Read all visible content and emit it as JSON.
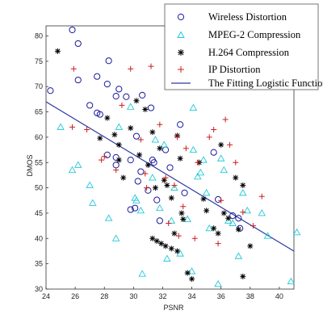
{
  "chart_data": {
    "type": "scatter",
    "xlabel": "PSNR",
    "ylabel": "DMOS",
    "xlim": [
      24,
      41
    ],
    "ylim": [
      30,
      82
    ],
    "xticks": [
      24,
      26,
      28,
      30,
      32,
      34,
      36,
      38,
      40
    ],
    "yticks": [
      30,
      35,
      40,
      45,
      50,
      55,
      60,
      65,
      70,
      75,
      80
    ],
    "legend_position": "top-right",
    "series": [
      {
        "name": "Wireless Distortion",
        "marker": "circle",
        "color": "#1a1a9e",
        "points": [
          [
            24.3,
            69.2
          ],
          [
            25.8,
            81.2
          ],
          [
            26.2,
            78.5
          ],
          [
            26.2,
            71.3
          ],
          [
            27.0,
            66.3
          ],
          [
            27.5,
            64.8
          ],
          [
            27.7,
            64.5
          ],
          [
            27.5,
            72.0
          ],
          [
            28.2,
            70.5
          ],
          [
            28.3,
            75.1
          ],
          [
            28.8,
            68.1
          ],
          [
            28.8,
            56.0
          ],
          [
            28.8,
            54.5
          ],
          [
            29.0,
            69.5
          ],
          [
            29.5,
            68.0
          ],
          [
            29.8,
            55.5
          ],
          [
            29.8,
            45.7
          ],
          [
            30.1,
            46.0
          ],
          [
            30.2,
            60.2
          ],
          [
            30.3,
            51.3
          ],
          [
            30.5,
            53.2
          ],
          [
            30.6,
            68.3
          ],
          [
            31.2,
            65.8
          ],
          [
            31.3,
            55.5
          ],
          [
            31.4,
            55.0
          ],
          [
            31.6,
            47.6
          ],
          [
            31.8,
            43.5
          ],
          [
            32.2,
            57.5
          ],
          [
            32.5,
            54.0
          ],
          [
            33.1,
            70.2
          ],
          [
            33.2,
            62.5
          ],
          [
            35.8,
            47.7
          ],
          [
            35.5,
            57.0
          ],
          [
            36.8,
            44.5
          ],
          [
            37.2,
            44.0
          ],
          [
            37.3,
            42.0
          ],
          [
            28.2,
            56.5
          ],
          [
            31.0,
            49.5
          ],
          [
            33.5,
            49.0
          ]
        ]
      },
      {
        "name": "MPEG-2 Compression",
        "marker": "triangle",
        "color": "#22c9d6",
        "points": [
          [
            25.0,
            62.0
          ],
          [
            25.8,
            53.5
          ],
          [
            26.2,
            54.5
          ],
          [
            27.0,
            50.5
          ],
          [
            27.2,
            47.0
          ],
          [
            28.3,
            44.0
          ],
          [
            28.8,
            40.0
          ],
          [
            29.0,
            62.0
          ],
          [
            29.8,
            66.0
          ],
          [
            30.1,
            48.0
          ],
          [
            30.2,
            47.5
          ],
          [
            30.5,
            45.5
          ],
          [
            30.6,
            33.0
          ],
          [
            31.3,
            52.0
          ],
          [
            31.5,
            59.5
          ],
          [
            31.8,
            46.0
          ],
          [
            32.1,
            58.5
          ],
          [
            32.3,
            36.0
          ],
          [
            32.6,
            43.5
          ],
          [
            32.8,
            50.0
          ],
          [
            33.2,
            37.0
          ],
          [
            33.7,
            43.8
          ],
          [
            34.0,
            33.5
          ],
          [
            34.1,
            57.5
          ],
          [
            34.1,
            65.8
          ],
          [
            34.4,
            52.2
          ],
          [
            34.6,
            53.0
          ],
          [
            34.8,
            55.5
          ],
          [
            35.0,
            49.0
          ],
          [
            35.2,
            42.0
          ],
          [
            35.8,
            31.0
          ],
          [
            36.0,
            55.8
          ],
          [
            36.2,
            53.5
          ],
          [
            36.5,
            43.5
          ],
          [
            36.8,
            43.0
          ],
          [
            37.2,
            36.5
          ],
          [
            37.5,
            49.0
          ],
          [
            37.8,
            45.5
          ],
          [
            38.8,
            45.0
          ],
          [
            39.2,
            40.5
          ],
          [
            40.8,
            31.5
          ],
          [
            41.2,
            41.2
          ]
        ]
      },
      {
        "name": "H.264 Compression",
        "marker": "star",
        "color": "#000000",
        "points": [
          [
            24.8,
            77.0
          ],
          [
            27.7,
            59.8
          ],
          [
            28.2,
            63.8
          ],
          [
            28.7,
            60.5
          ],
          [
            29.0,
            58.5
          ],
          [
            29.3,
            52.0
          ],
          [
            29.8,
            61.8
          ],
          [
            30.2,
            67.2
          ],
          [
            30.8,
            65.5
          ],
          [
            31.3,
            61.0
          ],
          [
            31.8,
            57.8
          ],
          [
            32.1,
            51.5
          ],
          [
            32.3,
            50.5
          ],
          [
            32.6,
            48.0
          ],
          [
            32.8,
            41.0
          ],
          [
            33.0,
            60.3
          ],
          [
            33.2,
            55.8
          ],
          [
            33.3,
            45.0
          ],
          [
            33.4,
            43.8
          ],
          [
            31.3,
            40.0
          ],
          [
            31.6,
            39.5
          ],
          [
            31.9,
            39.0
          ],
          [
            32.2,
            38.5
          ],
          [
            32.6,
            38.0
          ],
          [
            33.0,
            37.5
          ],
          [
            33.7,
            33.2
          ],
          [
            34.0,
            32.0
          ],
          [
            34.5,
            55.0
          ],
          [
            34.8,
            47.8
          ],
          [
            35.0,
            45.5
          ],
          [
            35.5,
            42.0
          ],
          [
            35.8,
            41.0
          ],
          [
            36.0,
            58.5
          ],
          [
            36.2,
            45.0
          ],
          [
            36.5,
            44.0
          ],
          [
            37.0,
            52.0
          ],
          [
            37.5,
            50.5
          ],
          [
            37.2,
            41.8
          ],
          [
            37.5,
            32.5
          ],
          [
            38.0,
            38.5
          ],
          [
            29.0,
            55.5
          ],
          [
            30.4,
            56.5
          ],
          [
            31.0,
            54.5
          ],
          [
            31.5,
            50.0
          ]
        ]
      },
      {
        "name": "IP Distortion",
        "marker": "plus",
        "color": "#cc1f1f",
        "points": [
          [
            25.8,
            62.0
          ],
          [
            25.9,
            73.5
          ],
          [
            26.8,
            61.5
          ],
          [
            27.8,
            55.5
          ],
          [
            28.0,
            56.2
          ],
          [
            28.8,
            53.5
          ],
          [
            29.2,
            66.3
          ],
          [
            29.8,
            73.5
          ],
          [
            30.5,
            59.5
          ],
          [
            30.8,
            52.8
          ],
          [
            31.2,
            74.0
          ],
          [
            31.8,
            62.5
          ],
          [
            32.2,
            52.0
          ],
          [
            32.4,
            43.0
          ],
          [
            32.8,
            50.5
          ],
          [
            33.0,
            60.0
          ],
          [
            33.4,
            46.3
          ],
          [
            33.6,
            57.8
          ],
          [
            34.2,
            40.0
          ],
          [
            34.4,
            55.0
          ],
          [
            35.2,
            60.0
          ],
          [
            35.5,
            61.5
          ],
          [
            35.8,
            39.0
          ],
          [
            36.0,
            47.5
          ],
          [
            36.3,
            63.5
          ],
          [
            36.6,
            58.5
          ],
          [
            37.0,
            55.0
          ],
          [
            37.5,
            45.2
          ],
          [
            38.2,
            42.5
          ],
          [
            38.8,
            48.3
          ],
          [
            30.9,
            50.0
          ],
          [
            33.1,
            40.5
          ]
        ]
      }
    ],
    "fit_line": {
      "name": "The Fitting Logistic Function",
      "color": "#2b3aa0",
      "x": [
        24,
        41
      ],
      "y": [
        67.0,
        37.5
      ]
    }
  }
}
